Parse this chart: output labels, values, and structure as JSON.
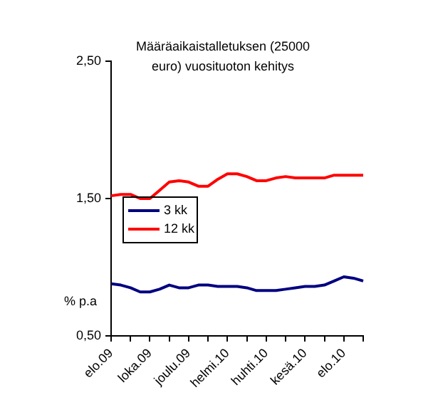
{
  "chart_data": {
    "type": "line",
    "title": "Määräaikaistalletuksen (25000 euro) vuosituoton kehitys",
    "ylabel": "% p.a",
    "categories": [
      "elo.09",
      null,
      null,
      null,
      "loka.09",
      null,
      null,
      null,
      "joulu.09",
      null,
      null,
      null,
      "helmi.10",
      null,
      null,
      null,
      "huhti.10",
      null,
      null,
      null,
      "kesä.10",
      null,
      null,
      null,
      "elo.10",
      null,
      null
    ],
    "series": [
      {
        "name": "3 kk",
        "color": "#000080",
        "values": [
          0.88,
          0.87,
          0.85,
          0.82,
          0.82,
          0.84,
          0.87,
          0.85,
          0.85,
          0.87,
          0.87,
          0.86,
          0.86,
          0.86,
          0.85,
          0.83,
          0.83,
          0.83,
          0.84,
          0.85,
          0.86,
          0.86,
          0.87,
          0.9,
          0.93,
          0.92,
          0.9
        ]
      },
      {
        "name": "12 kk",
        "color": "#ff0000",
        "values": [
          1.52,
          1.53,
          1.53,
          1.5,
          1.5,
          1.56,
          1.62,
          1.63,
          1.62,
          1.59,
          1.59,
          1.64,
          1.68,
          1.68,
          1.66,
          1.63,
          1.63,
          1.65,
          1.66,
          1.65,
          1.65,
          1.65,
          1.65,
          1.67,
          1.67,
          1.67,
          1.67
        ]
      }
    ],
    "ylim": [
      0.5,
      2.5
    ],
    "yticks": [
      {
        "value": 0.5,
        "label": "0,50"
      },
      {
        "value": 1.5,
        "label": "1,50"
      },
      {
        "value": 2.5,
        "label": "2,50"
      }
    ],
    "grid": false,
    "legend": "center left",
    "marker": "none",
    "line_style": "solid"
  }
}
